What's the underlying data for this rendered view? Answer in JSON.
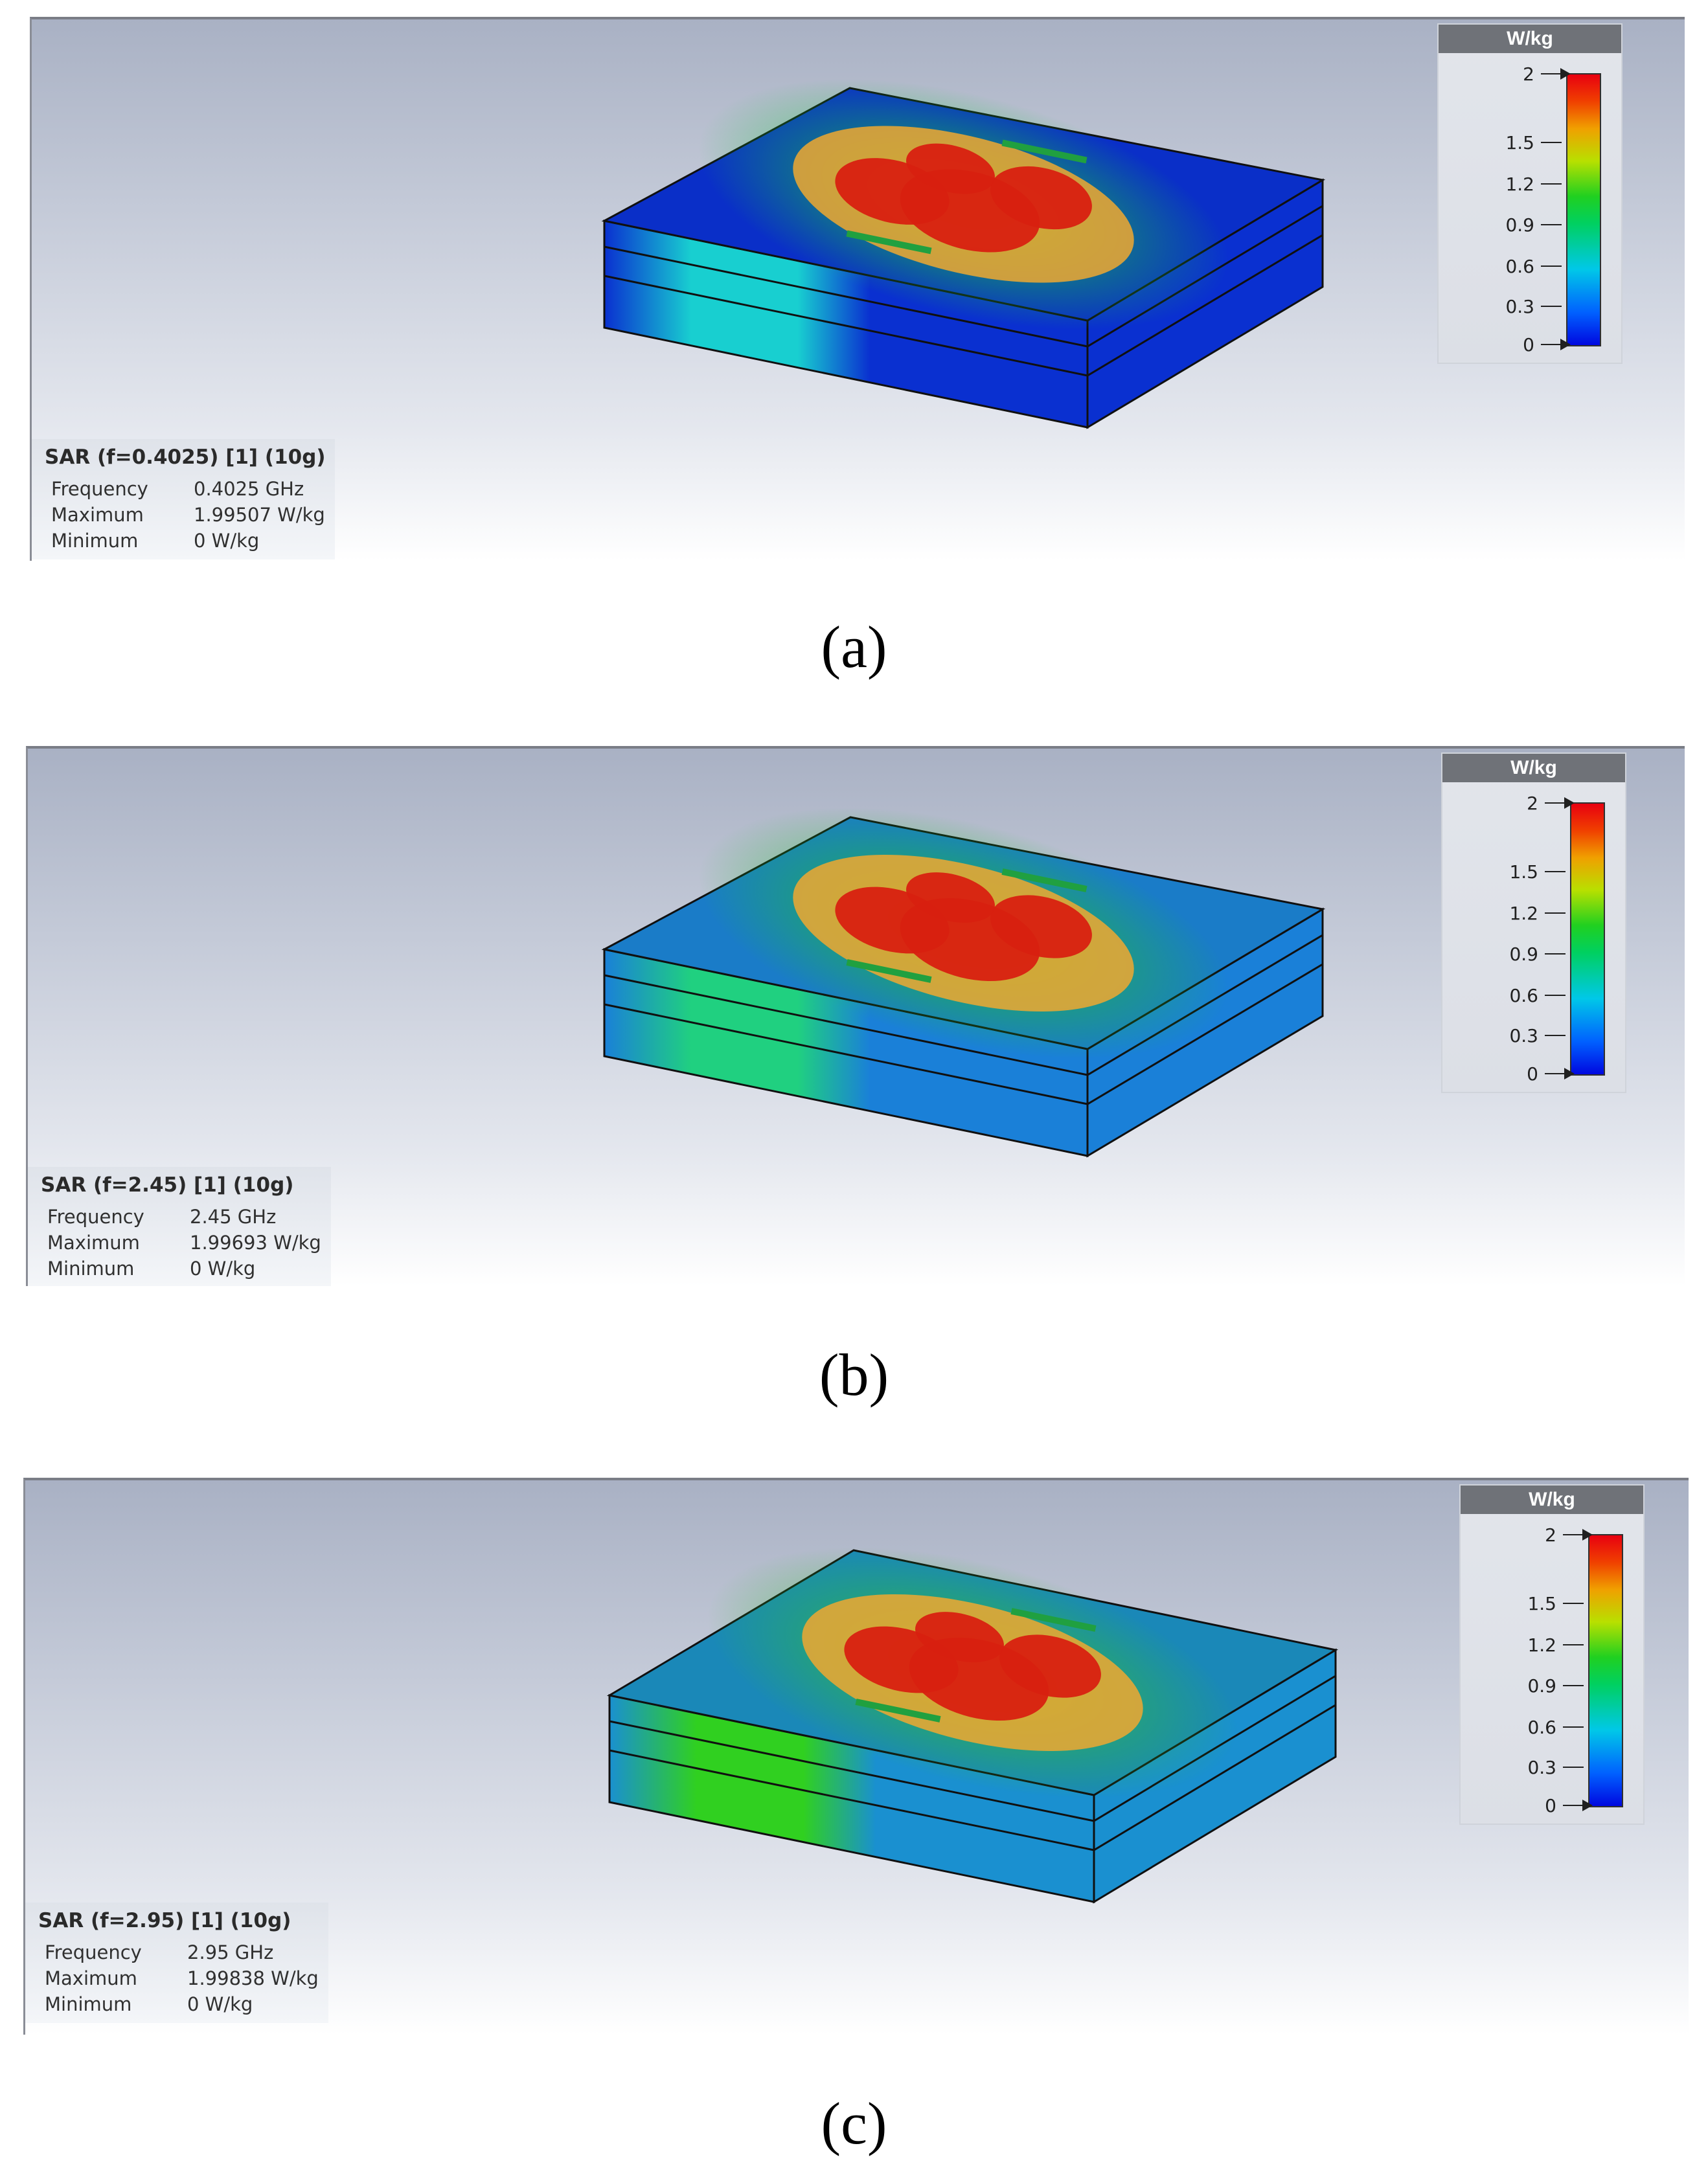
{
  "legend": {
    "unit": "W/kg",
    "ticks": [
      "2",
      "1.5",
      "1.2",
      "0.9",
      "0.6",
      "0.3",
      "0"
    ]
  },
  "panels": [
    {
      "info": {
        "title": "SAR (f=0.4025) [1] (10g)",
        "frequency_label": "Frequency",
        "frequency_value": "0.4025 GHz",
        "maximum_label": "Maximum",
        "maximum_value": "1.99507 W/kg",
        "minimum_label": "Minimum",
        "minimum_value": "0 W/kg"
      },
      "caption": "(a)",
      "colors": {
        "top_base": "#0a2fc8",
        "top_glow": "#18c840",
        "side_base": "#0a30d0",
        "side_band": "#18cfd0"
      }
    },
    {
      "info": {
        "title": "SAR (f=2.45) [1] (10g)",
        "frequency_label": "Frequency",
        "frequency_value": "2.45 GHz",
        "maximum_label": "Maximum",
        "maximum_value": "1.99693 W/kg",
        "minimum_label": "Minimum",
        "minimum_value": "0 W/kg"
      },
      "caption": "(b)",
      "colors": {
        "top_base": "#1a7cc8",
        "top_glow": "#20c030",
        "side_base": "#1a80d8",
        "side_band": "#20d080"
      }
    },
    {
      "info": {
        "title": "SAR (f=2.95) [1] (10g)",
        "frequency_label": "Frequency",
        "frequency_value": "2.95 GHz",
        "maximum_label": "Maximum",
        "maximum_value": "1.99838 W/kg",
        "minimum_label": "Minimum",
        "minimum_value": "0 W/kg"
      },
      "caption": "(c)",
      "colors": {
        "top_base": "#1a88b8",
        "top_glow": "#30c030",
        "side_base": "#1a90d0",
        "side_band": "#30d020"
      }
    }
  ]
}
